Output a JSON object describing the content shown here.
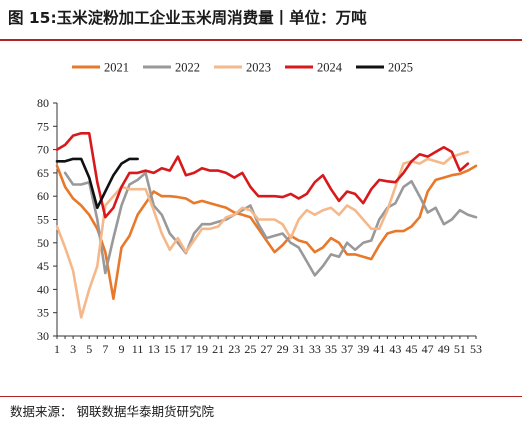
{
  "title": "图 15:玉米淀粉加工企业玉米周消费量丨单位：万吨",
  "source": "数据来源：  钢联数据华泰期货研究院",
  "chart_data": {
    "type": "line",
    "title": "图 15:玉米淀粉加工企业玉米周消费量丨单位：万吨",
    "xlabel": "",
    "ylabel": "",
    "ylim": [
      30,
      80
    ],
    "yticks": [
      30,
      35,
      40,
      45,
      50,
      55,
      60,
      65,
      70,
      75,
      80
    ],
    "xlim": [
      1,
      53
    ],
    "xticks": [
      "1",
      "3",
      "5",
      "7",
      "9",
      "11",
      "13",
      "15",
      "17",
      "19",
      "21",
      "23",
      "25",
      "27",
      "29",
      "31",
      "33",
      "35",
      "37",
      "39",
      "41",
      "43",
      "45",
      "47",
      "49",
      "51",
      "53"
    ],
    "grid": false,
    "legend_position": "top",
    "series": [
      {
        "name": "2021",
        "color": "#e8782a",
        "points": [
          [
            1,
            66.5
          ],
          [
            2,
            62
          ],
          [
            3,
            59.5
          ],
          [
            4,
            58
          ],
          [
            5,
            56
          ],
          [
            6,
            53
          ],
          [
            7,
            48
          ],
          [
            8,
            38
          ],
          [
            9,
            49
          ],
          [
            10,
            51.5
          ],
          [
            11,
            56
          ],
          [
            12,
            58.5
          ],
          [
            13,
            61
          ],
          [
            14,
            60
          ],
          [
            15,
            60
          ],
          [
            16,
            59.8
          ],
          [
            17,
            59.5
          ],
          [
            18,
            58.5
          ],
          [
            19,
            59
          ],
          [
            20,
            58.5
          ],
          [
            21,
            58
          ],
          [
            22,
            57.5
          ],
          [
            23,
            56.5
          ],
          [
            24,
            56
          ],
          [
            25,
            55.5
          ],
          [
            26,
            53
          ],
          [
            27,
            50.5
          ],
          [
            28,
            48
          ],
          [
            29,
            49.5
          ],
          [
            30,
            51.5
          ],
          [
            31,
            50.5
          ],
          [
            32,
            50
          ],
          [
            33,
            48
          ],
          [
            34,
            49
          ],
          [
            35,
            51
          ],
          [
            36,
            50
          ],
          [
            37,
            47.5
          ],
          [
            38,
            47.5
          ],
          [
            39,
            47
          ],
          [
            40,
            46.5
          ],
          [
            41,
            49.5
          ],
          [
            42,
            52
          ],
          [
            43,
            52.5
          ],
          [
            44,
            52.5
          ],
          [
            45,
            53.5
          ],
          [
            46,
            55.5
          ],
          [
            47,
            61
          ],
          [
            48,
            63.5
          ],
          [
            49,
            64
          ],
          [
            50,
            64.5
          ],
          [
            51,
            64.8
          ],
          [
            52,
            65.5
          ],
          [
            53,
            66.5
          ]
        ]
      },
      {
        "name": "2022",
        "color": "#999999",
        "points": [
          [
            2,
            65
          ],
          [
            3,
            62.5
          ],
          [
            4,
            62.5
          ],
          [
            5,
            63
          ],
          [
            6,
            55
          ],
          [
            7,
            43.5
          ],
          [
            8,
            51
          ],
          [
            9,
            58
          ],
          [
            10,
            62.5
          ],
          [
            11,
            63.5
          ],
          [
            12,
            65
          ],
          [
            13,
            58
          ],
          [
            14,
            56
          ],
          [
            15,
            52
          ],
          [
            16,
            50
          ],
          [
            17,
            47.8
          ],
          [
            18,
            52
          ],
          [
            19,
            54
          ],
          [
            20,
            54
          ],
          [
            21,
            54.5
          ],
          [
            22,
            55
          ],
          [
            23,
            56
          ],
          [
            24,
            57
          ],
          [
            25,
            58
          ],
          [
            26,
            54
          ],
          [
            27,
            51
          ],
          [
            28,
            51.5
          ],
          [
            29,
            52
          ],
          [
            30,
            50
          ],
          [
            31,
            49
          ],
          [
            32,
            46
          ],
          [
            33,
            43
          ],
          [
            34,
            45
          ],
          [
            35,
            47.5
          ],
          [
            36,
            47
          ],
          [
            37,
            50
          ],
          [
            38,
            48.5
          ],
          [
            39,
            50
          ],
          [
            40,
            50.5
          ],
          [
            41,
            55
          ],
          [
            42,
            57.5
          ],
          [
            43,
            58.5
          ],
          [
            44,
            62
          ],
          [
            45,
            63.2
          ],
          [
            46,
            60
          ],
          [
            47,
            56.5
          ],
          [
            48,
            57.5
          ],
          [
            49,
            54
          ],
          [
            50,
            55
          ],
          [
            51,
            57
          ],
          [
            52,
            56
          ],
          [
            53,
            55.5
          ]
        ]
      },
      {
        "name": "2023",
        "color": "#f5b88a",
        "points": [
          [
            1,
            53.5
          ],
          [
            2,
            49
          ],
          [
            3,
            44
          ],
          [
            4,
            34
          ],
          [
            5,
            40
          ],
          [
            6,
            45
          ],
          [
            7,
            58
          ],
          [
            8,
            60
          ],
          [
            9,
            62
          ],
          [
            10,
            61.5
          ],
          [
            11,
            61.5
          ],
          [
            12,
            61.5
          ],
          [
            13,
            57
          ],
          [
            14,
            52
          ],
          [
            15,
            48.5
          ],
          [
            16,
            51
          ],
          [
            17,
            48
          ],
          [
            18,
            50.5
          ],
          [
            19,
            53
          ],
          [
            20,
            53
          ],
          [
            21,
            53.5
          ],
          [
            22,
            55.5
          ],
          [
            23,
            56
          ],
          [
            24,
            57.5
          ],
          [
            25,
            57
          ],
          [
            26,
            55
          ],
          [
            27,
            55
          ],
          [
            28,
            55
          ],
          [
            29,
            54
          ],
          [
            30,
            51
          ],
          [
            31,
            55
          ],
          [
            32,
            57
          ],
          [
            33,
            56
          ],
          [
            34,
            57
          ],
          [
            35,
            57.5
          ],
          [
            36,
            56
          ],
          [
            37,
            58
          ],
          [
            38,
            57
          ],
          [
            39,
            55
          ],
          [
            40,
            53
          ],
          [
            41,
            53
          ],
          [
            42,
            57
          ],
          [
            43,
            62
          ],
          [
            44,
            67
          ],
          [
            45,
            67.5
          ],
          [
            46,
            67
          ],
          [
            47,
            68
          ],
          [
            48,
            67.5
          ],
          [
            49,
            67
          ],
          [
            50,
            68.5
          ],
          [
            51,
            69
          ],
          [
            52,
            69.5
          ]
        ]
      },
      {
        "name": "2024",
        "color": "#d7191c",
        "points": [
          [
            1,
            70
          ],
          [
            2,
            71
          ],
          [
            3,
            73
          ],
          [
            4,
            73.5
          ],
          [
            5,
            73.5
          ],
          [
            6,
            63
          ],
          [
            7,
            55.5
          ],
          [
            8,
            57.5
          ],
          [
            9,
            62
          ],
          [
            10,
            65
          ],
          [
            11,
            65
          ],
          [
            12,
            65.5
          ],
          [
            13,
            65
          ],
          [
            14,
            66
          ],
          [
            15,
            65.5
          ],
          [
            16,
            68.5
          ],
          [
            17,
            64.5
          ],
          [
            18,
            65
          ],
          [
            19,
            66
          ],
          [
            20,
            65.5
          ],
          [
            21,
            65.5
          ],
          [
            22,
            65
          ],
          [
            23,
            64
          ],
          [
            24,
            65
          ],
          [
            25,
            62
          ],
          [
            26,
            60
          ],
          [
            27,
            60
          ],
          [
            28,
            60
          ],
          [
            29,
            59.8
          ],
          [
            30,
            60.5
          ],
          [
            31,
            59.5
          ],
          [
            32,
            60.5
          ],
          [
            33,
            63
          ],
          [
            34,
            64.5
          ],
          [
            35,
            61.5
          ],
          [
            36,
            59
          ],
          [
            37,
            61
          ],
          [
            38,
            60.5
          ],
          [
            39,
            58.5
          ],
          [
            40,
            61.5
          ],
          [
            41,
            63.5
          ],
          [
            42,
            63.2
          ],
          [
            43,
            63
          ],
          [
            44,
            65
          ],
          [
            45,
            67.5
          ],
          [
            46,
            69
          ],
          [
            47,
            68.5
          ],
          [
            48,
            69.5
          ],
          [
            49,
            70.5
          ],
          [
            50,
            69.5
          ],
          [
            51,
            65.5
          ],
          [
            52,
            67
          ]
        ]
      },
      {
        "name": "2025",
        "color": "#111111",
        "points": [
          [
            1,
            67.5
          ],
          [
            2,
            67.5
          ],
          [
            3,
            68
          ],
          [
            4,
            68
          ],
          [
            5,
            64
          ],
          [
            6,
            57.5
          ],
          [
            7,
            61
          ],
          [
            8,
            64.5
          ],
          [
            9,
            67
          ],
          [
            10,
            68
          ],
          [
            11,
            68
          ]
        ]
      }
    ]
  }
}
